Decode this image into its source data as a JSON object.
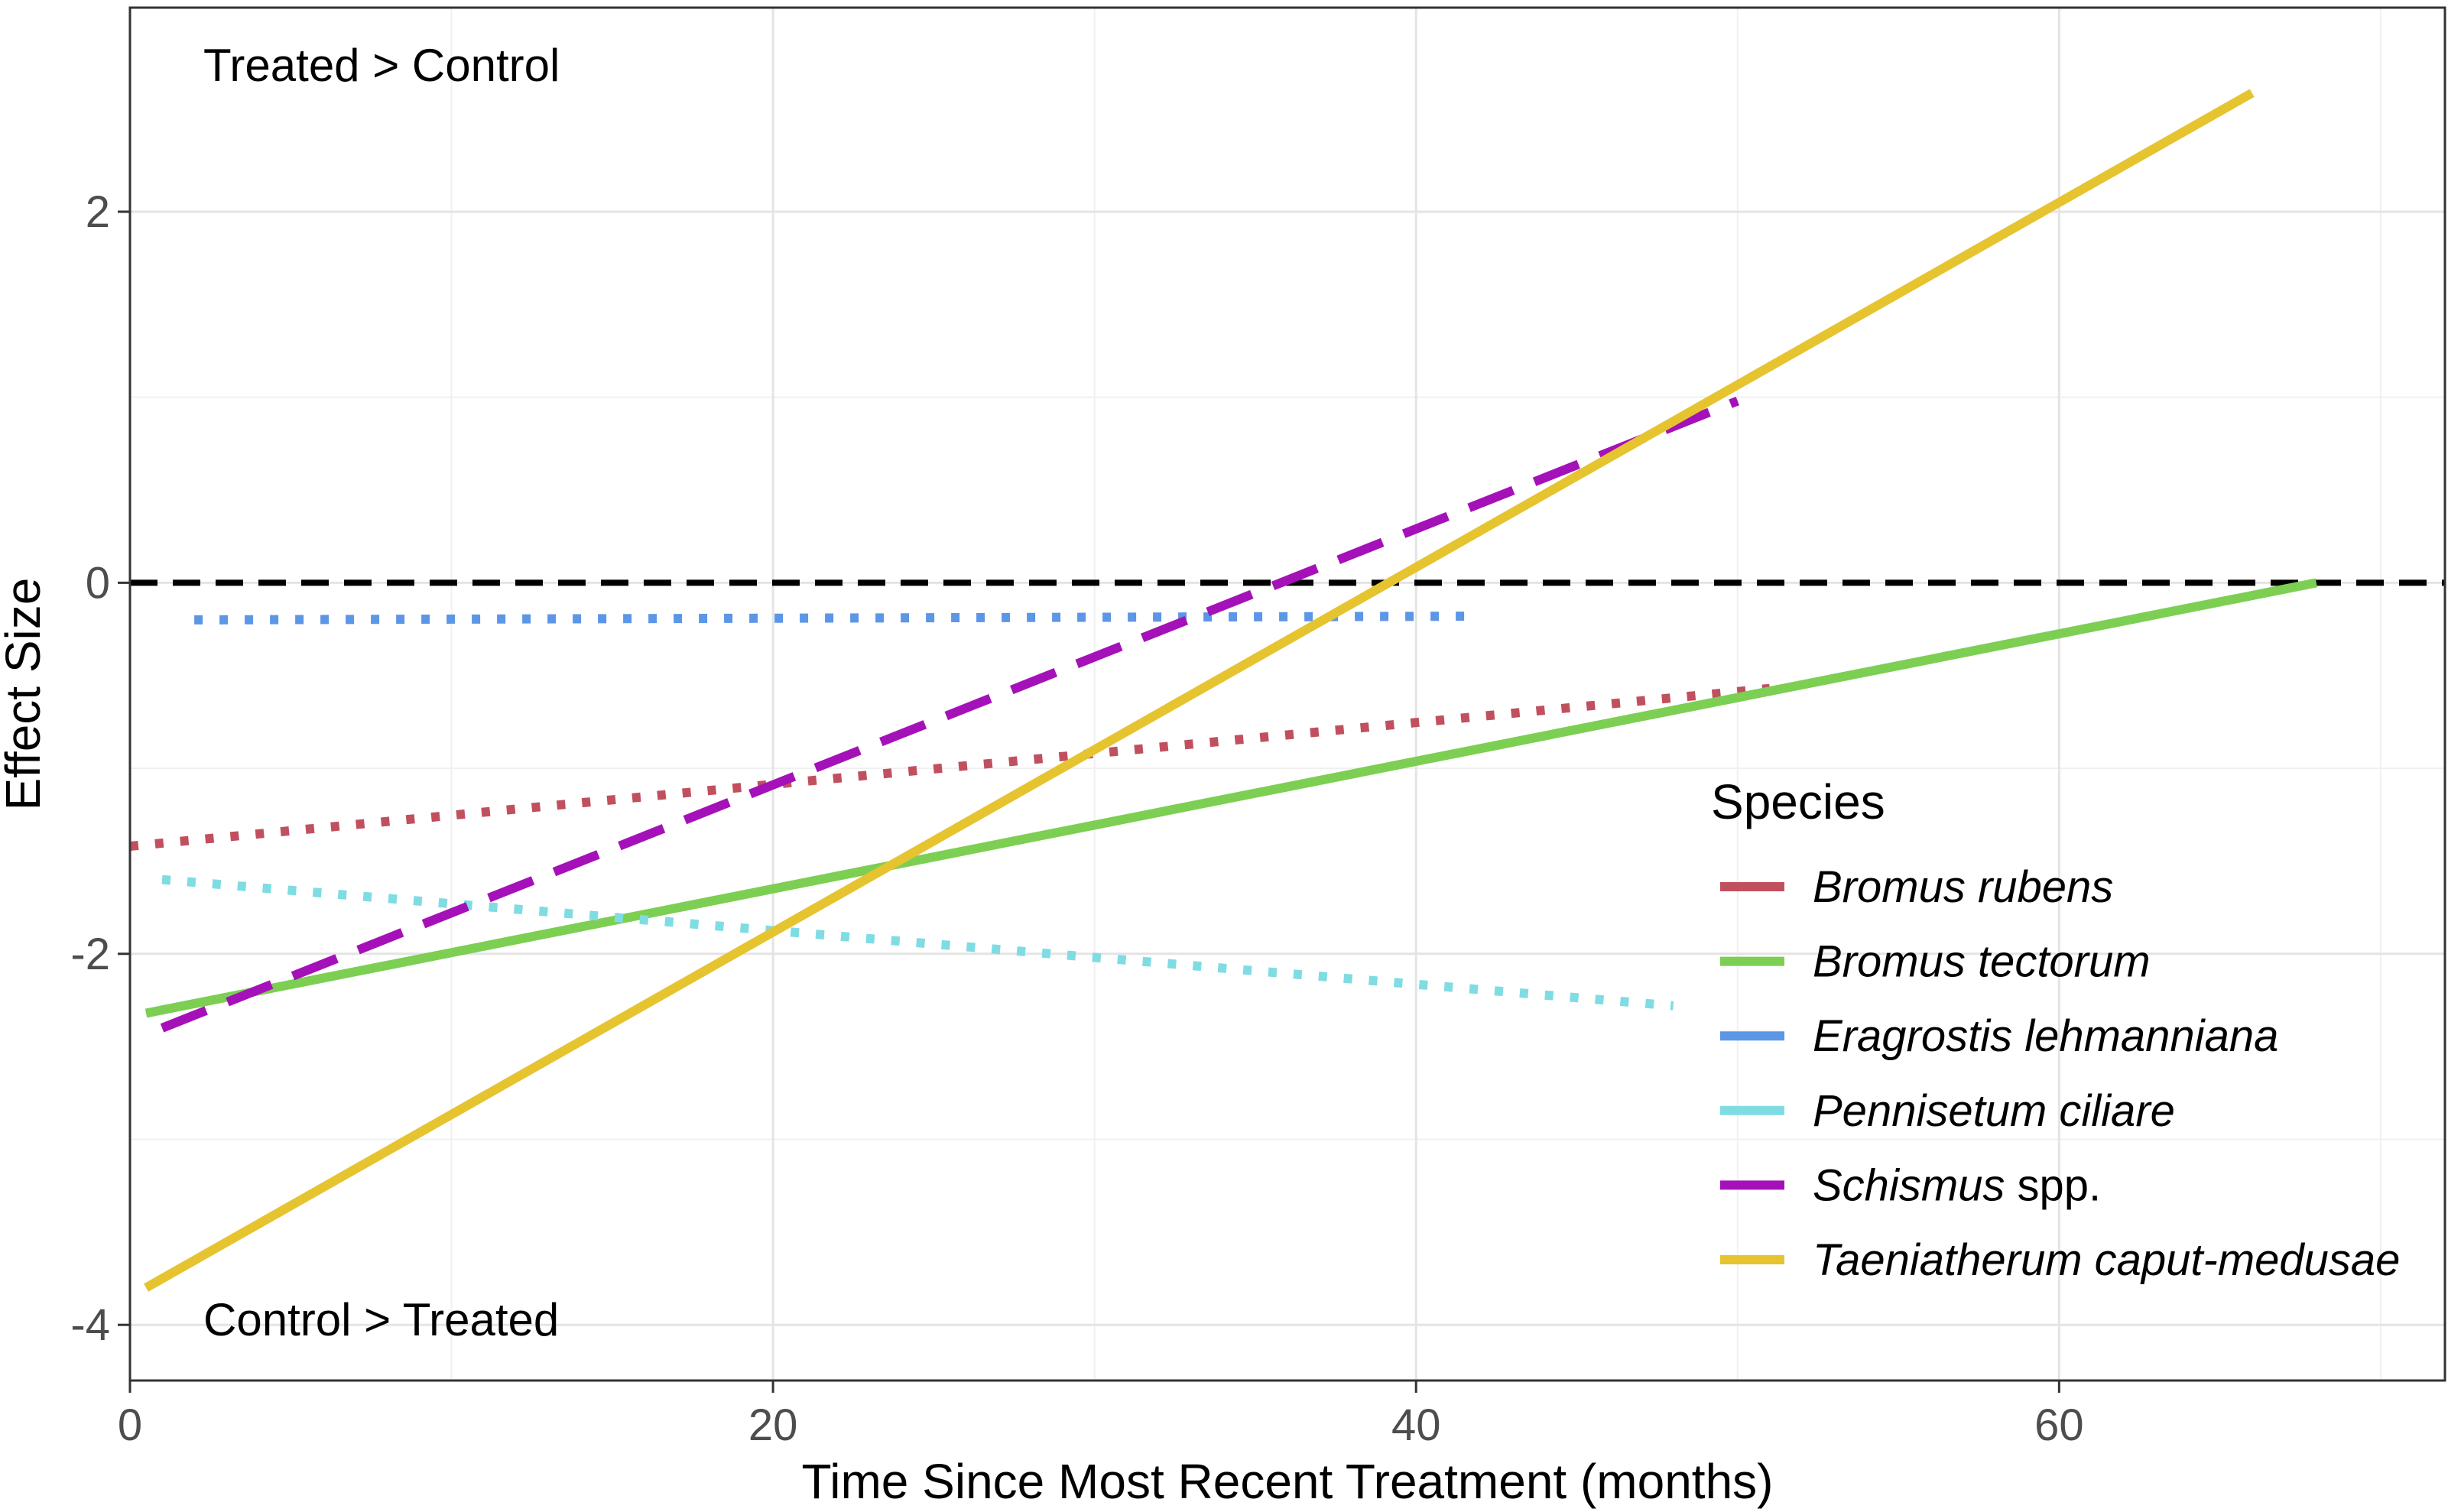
{
  "chart_data": {
    "type": "line",
    "title": "",
    "xlabel": "Time Since Most Recent Treatment (months)",
    "ylabel": "Effect Size",
    "xlim": [
      0,
      72
    ],
    "ylim": [
      -4.3,
      3.1
    ],
    "x_ticks": [
      0,
      20,
      40,
      60
    ],
    "x_tick_labels": [
      "0",
      "20",
      "40",
      "60"
    ],
    "y_ticks": [
      -4,
      -2,
      0,
      2
    ],
    "y_tick_labels": [
      "-4",
      "-2",
      "0",
      "2"
    ],
    "x_minor_gridlines": [
      10,
      30,
      50,
      70
    ],
    "y_minor_gridlines": [
      -3,
      -1,
      1
    ],
    "grid": true,
    "reference_line": {
      "y": 0,
      "style": "dashed",
      "color": "#000000"
    },
    "annotations": {
      "top": "Treated > Control",
      "bottom": "Control > Treated"
    },
    "legend": {
      "title": "Species",
      "placement": "right",
      "entries": [
        {
          "italic": "Bromus rubens",
          "suffix": "",
          "color": "#c1505f",
          "style": "dotted"
        },
        {
          "italic": "Bromus tectorum",
          "suffix": "",
          "color": "#7ccf52",
          "style": "solid"
        },
        {
          "italic": "Eragrostis lehmanniana",
          "suffix": "",
          "color": "#5c96e6",
          "style": "dotted"
        },
        {
          "italic": "Pennisetum ciliare",
          "suffix": "",
          "color": "#7fdce2",
          "style": "dotted"
        },
        {
          "italic": "Schismus",
          "suffix": " spp.",
          "color": "#a511b8",
          "style": "dashed"
        },
        {
          "italic": "Taeniatherum caput-medusae",
          "suffix": "",
          "color": "#e6c430",
          "style": "solid"
        }
      ]
    },
    "series": [
      {
        "name": "Bromus rubens",
        "x": [
          0,
          51
        ],
        "y": [
          -1.42,
          -0.57
        ],
        "color": "#c1505f",
        "style": "dotted"
      },
      {
        "name": "Bromus tectorum",
        "x": [
          0.5,
          68
        ],
        "y": [
          -2.32,
          0.0
        ],
        "color": "#7ccf52",
        "style": "solid"
      },
      {
        "name": "Eragrostis lehmanniana",
        "x": [
          2,
          42
        ],
        "y": [
          -0.2,
          -0.18
        ],
        "color": "#5c96e6",
        "style": "dotted"
      },
      {
        "name": "Pennisetum ciliare",
        "x": [
          1,
          48
        ],
        "y": [
          -1.6,
          -2.28
        ],
        "color": "#7fdce2",
        "style": "dotted"
      },
      {
        "name": "Schismus spp.",
        "x": [
          1,
          50
        ],
        "y": [
          -2.4,
          0.98
        ],
        "color": "#a511b8",
        "style": "dashed"
      },
      {
        "name": "Taeniatherum caput-medusae",
        "x": [
          0.5,
          66
        ],
        "y": [
          -3.8,
          2.64
        ],
        "color": "#e6c430",
        "style": "solid"
      }
    ]
  }
}
